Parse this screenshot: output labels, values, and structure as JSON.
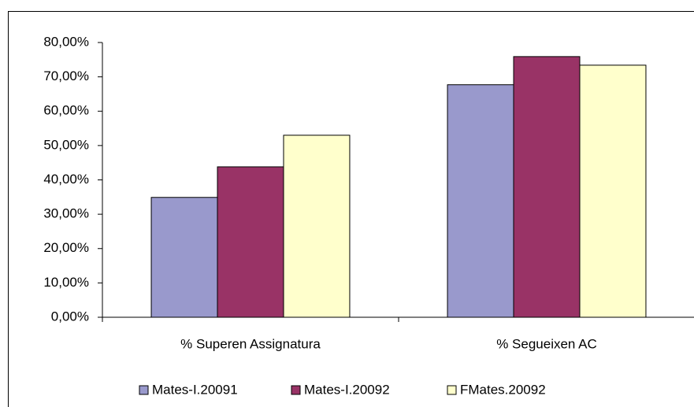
{
  "chart_data": {
    "type": "bar",
    "categories": [
      "% Superen Assignatura",
      "% Segueixen AC"
    ],
    "series": [
      {
        "name": "Mates-I.20091",
        "color": "#9999cc",
        "values": [
          34.9,
          67.7
        ]
      },
      {
        "name": "Mates-I.20092",
        "color": "#993366",
        "values": [
          43.8,
          75.9
        ]
      },
      {
        "name": "FMates.20092",
        "color": "#ffffcc",
        "values": [
          53.0,
          73.4
        ]
      }
    ],
    "ylim": [
      0,
      80
    ],
    "yticks": [
      {
        "value": 0,
        "label": "0,00%"
      },
      {
        "value": 10,
        "label": "10,00%"
      },
      {
        "value": 20,
        "label": "20,00%"
      },
      {
        "value": 30,
        "label": "30,00%"
      },
      {
        "value": 40,
        "label": "40,00%"
      },
      {
        "value": 50,
        "label": "50,00%"
      },
      {
        "value": 60,
        "label": "60,00%"
      },
      {
        "value": 70,
        "label": "70,00%"
      },
      {
        "value": 80,
        "label": "80,00%"
      }
    ],
    "grid": false,
    "legend": "bottom"
  }
}
